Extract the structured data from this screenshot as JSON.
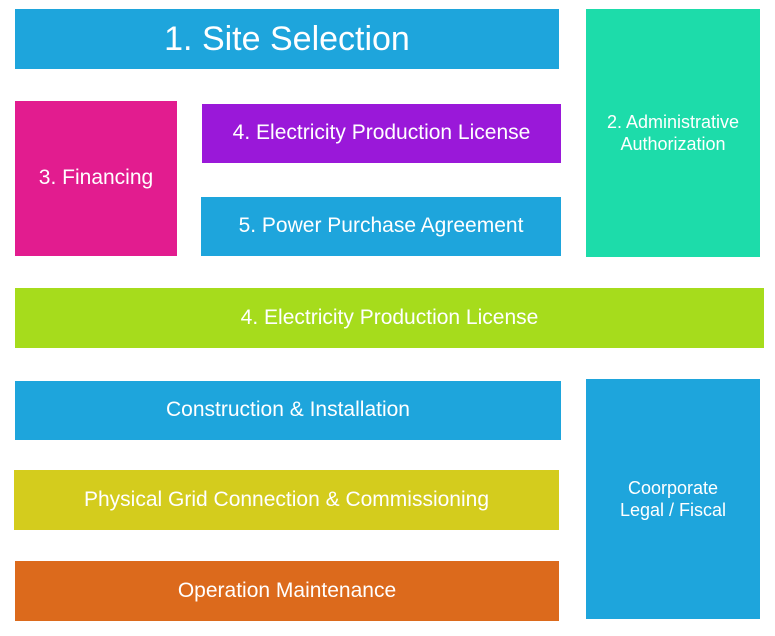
{
  "blocks": {
    "site_selection": "1. Site Selection",
    "financing": "3. Financing",
    "license_top": "4. Electricity Production License",
    "power_purchase": "5. Power Purchase Agreement",
    "admin_auth": {
      "line1": "2. Administrative",
      "line2": "Authorization"
    },
    "license_wide": "4. Electricity Production License",
    "construction": "Construction & Installation",
    "grid_connection": "Physical Grid Connection & Commissioning",
    "operation": "Operation Maintenance",
    "corporate": {
      "line1": "Coorporate",
      "line2": "Legal / Fiscal"
    }
  },
  "colors": {
    "blue": "#1ea5dc",
    "magenta": "#e21c8f",
    "purple": "#9a18d9",
    "teal": "#1ddcaa",
    "lime": "#a6dc1c",
    "mustard": "#d4cc1d",
    "orange": "#dc6a1c"
  }
}
